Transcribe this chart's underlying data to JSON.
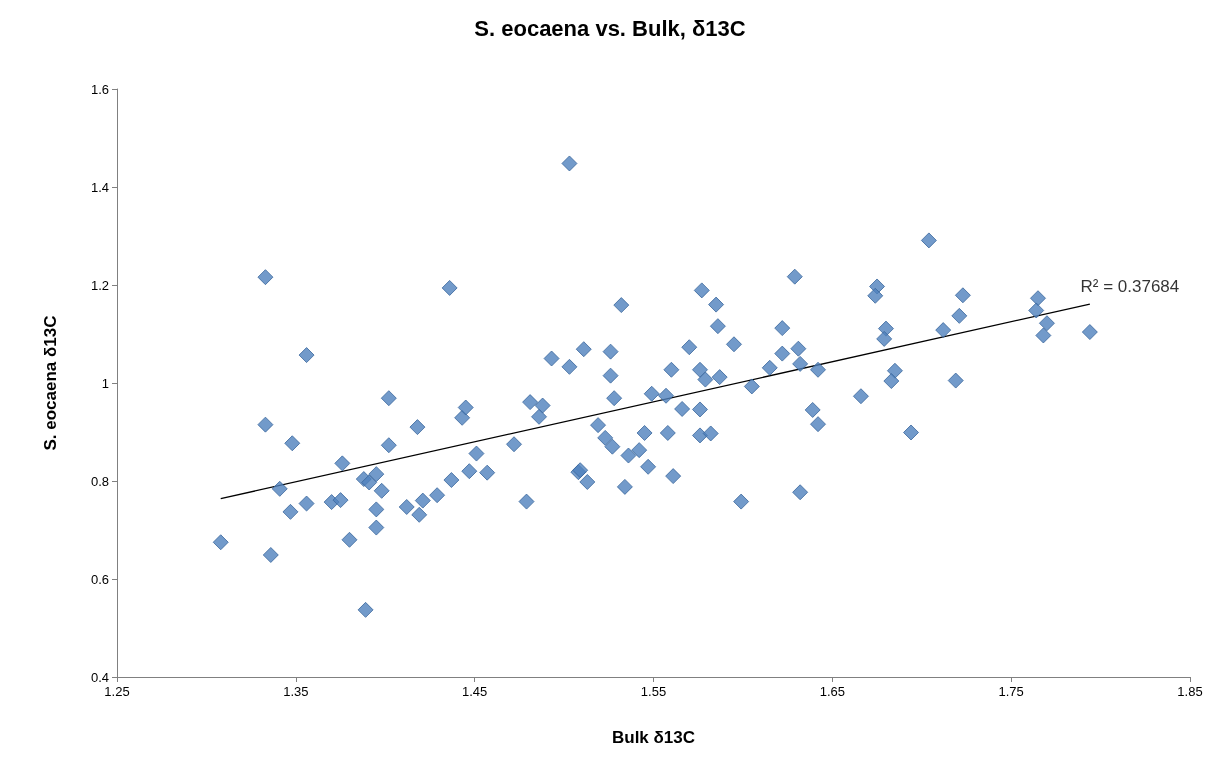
{
  "chart_data": {
    "type": "scatter",
    "title": "S. eocaena vs. Bulk, δ13C",
    "xlabel": "Bulk δ13C",
    "ylabel": "S. eocaena δ13C",
    "marker": "diamond",
    "grid": false,
    "xlim": [
      1.25,
      1.85
    ],
    "xticks": [
      1.25,
      1.35,
      1.45,
      1.55,
      1.65,
      1.75,
      1.85
    ],
    "ylim": [
      0.4,
      1.6
    ],
    "yticks": [
      0.4,
      0.6,
      0.8,
      1,
      1.2,
      1.4,
      1.6
    ],
    "annotations": [
      {
        "text": "R² = 0.37684",
        "x": 1.794,
        "y": 1.161
      }
    ],
    "series": [
      {
        "color": "#4f81bd",
        "x": [
          1.308,
          1.333,
          1.333,
          1.336,
          1.341,
          1.348,
          1.347,
          1.356,
          1.356,
          1.376,
          1.37,
          1.375,
          1.38,
          1.388,
          1.391,
          1.389,
          1.395,
          1.398,
          1.395,
          1.395,
          1.402,
          1.402,
          1.412,
          1.421,
          1.419,
          1.418,
          1.429,
          1.436,
          1.437,
          1.443,
          1.445,
          1.447,
          1.451,
          1.457,
          1.472,
          1.479,
          1.481,
          1.488,
          1.486,
          1.493,
          1.503,
          1.503,
          1.508,
          1.509,
          1.513,
          1.511,
          1.519,
          1.523,
          1.527,
          1.526,
          1.526,
          1.528,
          1.532,
          1.534,
          1.536,
          1.542,
          1.545,
          1.547,
          1.549,
          1.557,
          1.558,
          1.56,
          1.561,
          1.566,
          1.57,
          1.576,
          1.576,
          1.576,
          1.577,
          1.579,
          1.582,
          1.585,
          1.586,
          1.587,
          1.595,
          1.599,
          1.605,
          1.615,
          1.622,
          1.622,
          1.629,
          1.631,
          1.632,
          1.632,
          1.639,
          1.642,
          1.642,
          1.666,
          1.675,
          1.674,
          1.68,
          1.679,
          1.685,
          1.683,
          1.694,
          1.704,
          1.712,
          1.719,
          1.721,
          1.723,
          1.765,
          1.764,
          1.77,
          1.768,
          1.794
        ],
        "values": [
          0.675,
          1.216,
          0.915,
          0.649,
          0.784,
          0.877,
          0.737,
          1.057,
          0.754,
          0.836,
          0.757,
          0.761,
          0.68,
          0.804,
          0.797,
          0.537,
          0.814,
          0.78,
          0.742,
          0.705,
          0.969,
          0.873,
          0.747,
          0.76,
          0.731,
          0.91,
          0.771,
          1.194,
          0.802,
          0.929,
          0.95,
          0.82,
          0.856,
          0.817,
          0.875,
          0.758,
          0.961,
          0.954,
          0.931,
          1.05,
          1.448,
          1.033,
          0.818,
          0.822,
          0.798,
          1.069,
          0.914,
          0.888,
          0.87,
          1.064,
          1.015,
          0.969,
          1.159,
          0.788,
          0.852,
          0.863,
          0.898,
          0.829,
          0.978,
          0.974,
          0.898,
          1.027,
          0.81,
          0.947,
          1.073,
          0.946,
          1.027,
          0.893,
          1.189,
          1.007,
          0.897,
          1.16,
          1.116,
          1.012,
          1.079,
          0.758,
          0.993,
          1.031,
          1.112,
          1.06,
          1.217,
          1.07,
          1.039,
          0.777,
          0.945,
          1.027,
          0.916,
          0.973,
          1.197,
          1.178,
          1.111,
          1.09,
          1.025,
          1.004,
          0.899,
          1.291,
          1.108,
          1.005,
          1.137,
          1.179,
          1.173,
          1.148,
          1.122,
          1.097,
          1.104
        ]
      },
      {
        "type": "line",
        "color": "#000000",
        "marker": "none",
        "x": [
          1.308,
          1.794
        ],
        "values": [
          0.764,
          1.161
        ]
      }
    ]
  }
}
